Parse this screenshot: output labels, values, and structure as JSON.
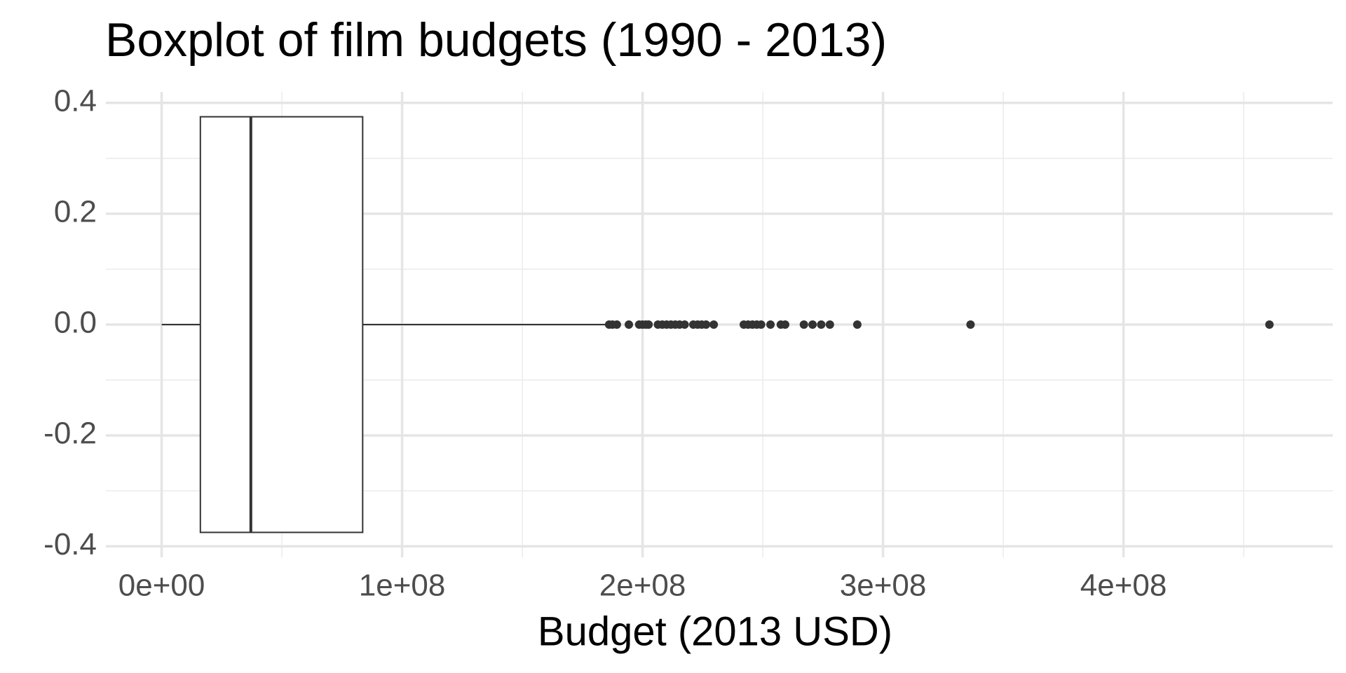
{
  "chart_data": {
    "type": "boxplot",
    "title": "Boxplot of film budgets (1990 - 2013)",
    "x_label": "Budget (2013 USD)",
    "whisker_low": 7000,
    "q1": 16100000,
    "median": 37100000,
    "q3": 83600000,
    "whisker_high": 185000000,
    "outliers": [
      186100000,
      187500000,
      189300000,
      194300000,
      198600000,
      200000000,
      201400000,
      202500000,
      206400000,
      208200000,
      210000000,
      211800000,
      213600000,
      215400000,
      217500000,
      221100000,
      222900000,
      224600000,
      226400000,
      229600000,
      242100000,
      243900000,
      245700000,
      247500000,
      249300000,
      253200000,
      257500000,
      259300000,
      267100000,
      270700000,
      274300000,
      277900000,
      289300000,
      336400000,
      460700000
    ],
    "box_width": 0.75,
    "color": "#333333",
    "box_fill": "#ffffff",
    "xlim": [
      -23200000,
      487000000
    ],
    "xticks": [
      {
        "value": 0,
        "label": "0e+00"
      },
      {
        "value": 100000000,
        "label": "1e+08"
      },
      {
        "value": 200000000,
        "label": "2e+08"
      },
      {
        "value": 300000000,
        "label": "3e+08"
      },
      {
        "value": 400000000,
        "label": "4e+08"
      }
    ],
    "x_minor_grid": [
      50000000,
      150000000,
      250000000,
      350000000,
      450000000
    ],
    "ylim": [
      -0.42,
      0.42
    ],
    "yticks": [
      -0.4,
      -0.2,
      {
        "value": 0,
        "label": "0.0"
      },
      0.2,
      0.4
    ],
    "y_minor_grid": [
      -0.3,
      -0.1,
      0.1,
      0.3
    ],
    "grid": true
  }
}
